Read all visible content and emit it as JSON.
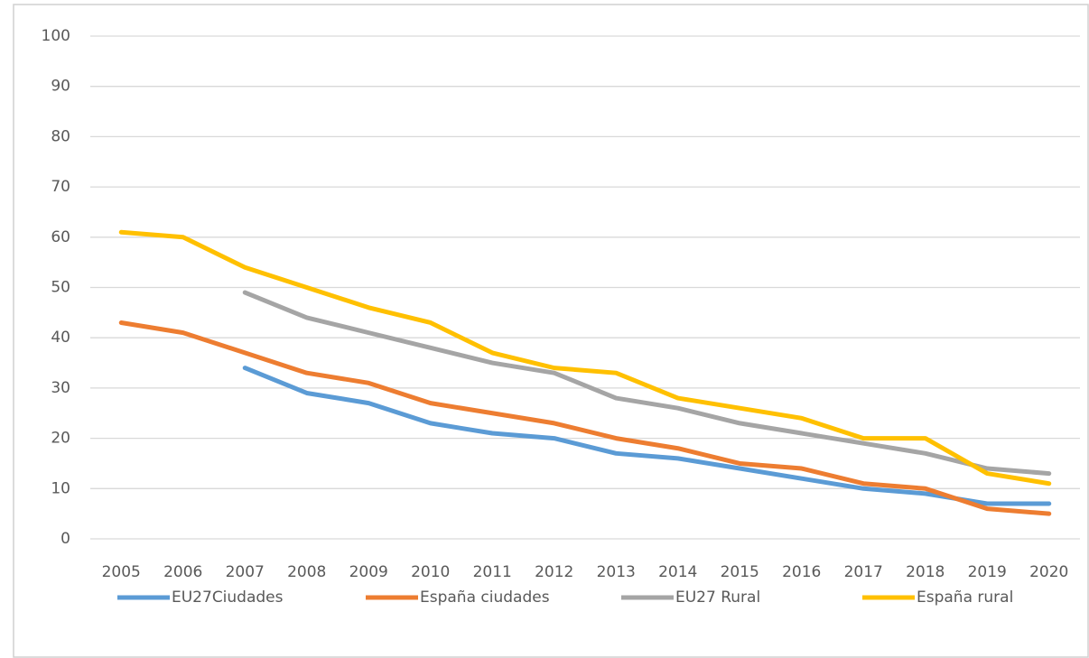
{
  "chart_data": {
    "type": "line",
    "x": [
      "2005",
      "2006",
      "2007",
      "2008",
      "2009",
      "2010",
      "2011",
      "2012",
      "2013",
      "2014",
      "2015",
      "2016",
      "2017",
      "2018",
      "2019",
      "2020"
    ],
    "series": [
      {
        "name": "EU27Ciudades",
        "color": "#5b9bd5",
        "values": [
          null,
          null,
          34,
          29,
          27,
          23,
          21,
          20,
          17,
          16,
          14,
          12,
          10,
          9,
          7,
          7
        ]
      },
      {
        "name": "España ciudades",
        "color": "#ed7d31",
        "values": [
          43,
          41,
          37,
          33,
          31,
          27,
          25,
          23,
          20,
          18,
          15,
          14,
          11,
          10,
          6,
          5
        ]
      },
      {
        "name": "EU27 Rural",
        "color": "#a5a5a5",
        "values": [
          null,
          null,
          49,
          44,
          41,
          38,
          35,
          33,
          28,
          26,
          23,
          21,
          19,
          17,
          14,
          13
        ]
      },
      {
        "name": "España rural",
        "color": "#ffc000",
        "values": [
          61,
          60,
          54,
          50,
          46,
          43,
          37,
          34,
          33,
          28,
          26,
          24,
          20,
          20,
          13,
          11
        ]
      }
    ],
    "ylim": [
      0,
      100
    ],
    "yticks": [
      0,
      10,
      20,
      30,
      40,
      50,
      60,
      70,
      80,
      90,
      100
    ],
    "grid": true,
    "legend": "bottom"
  }
}
